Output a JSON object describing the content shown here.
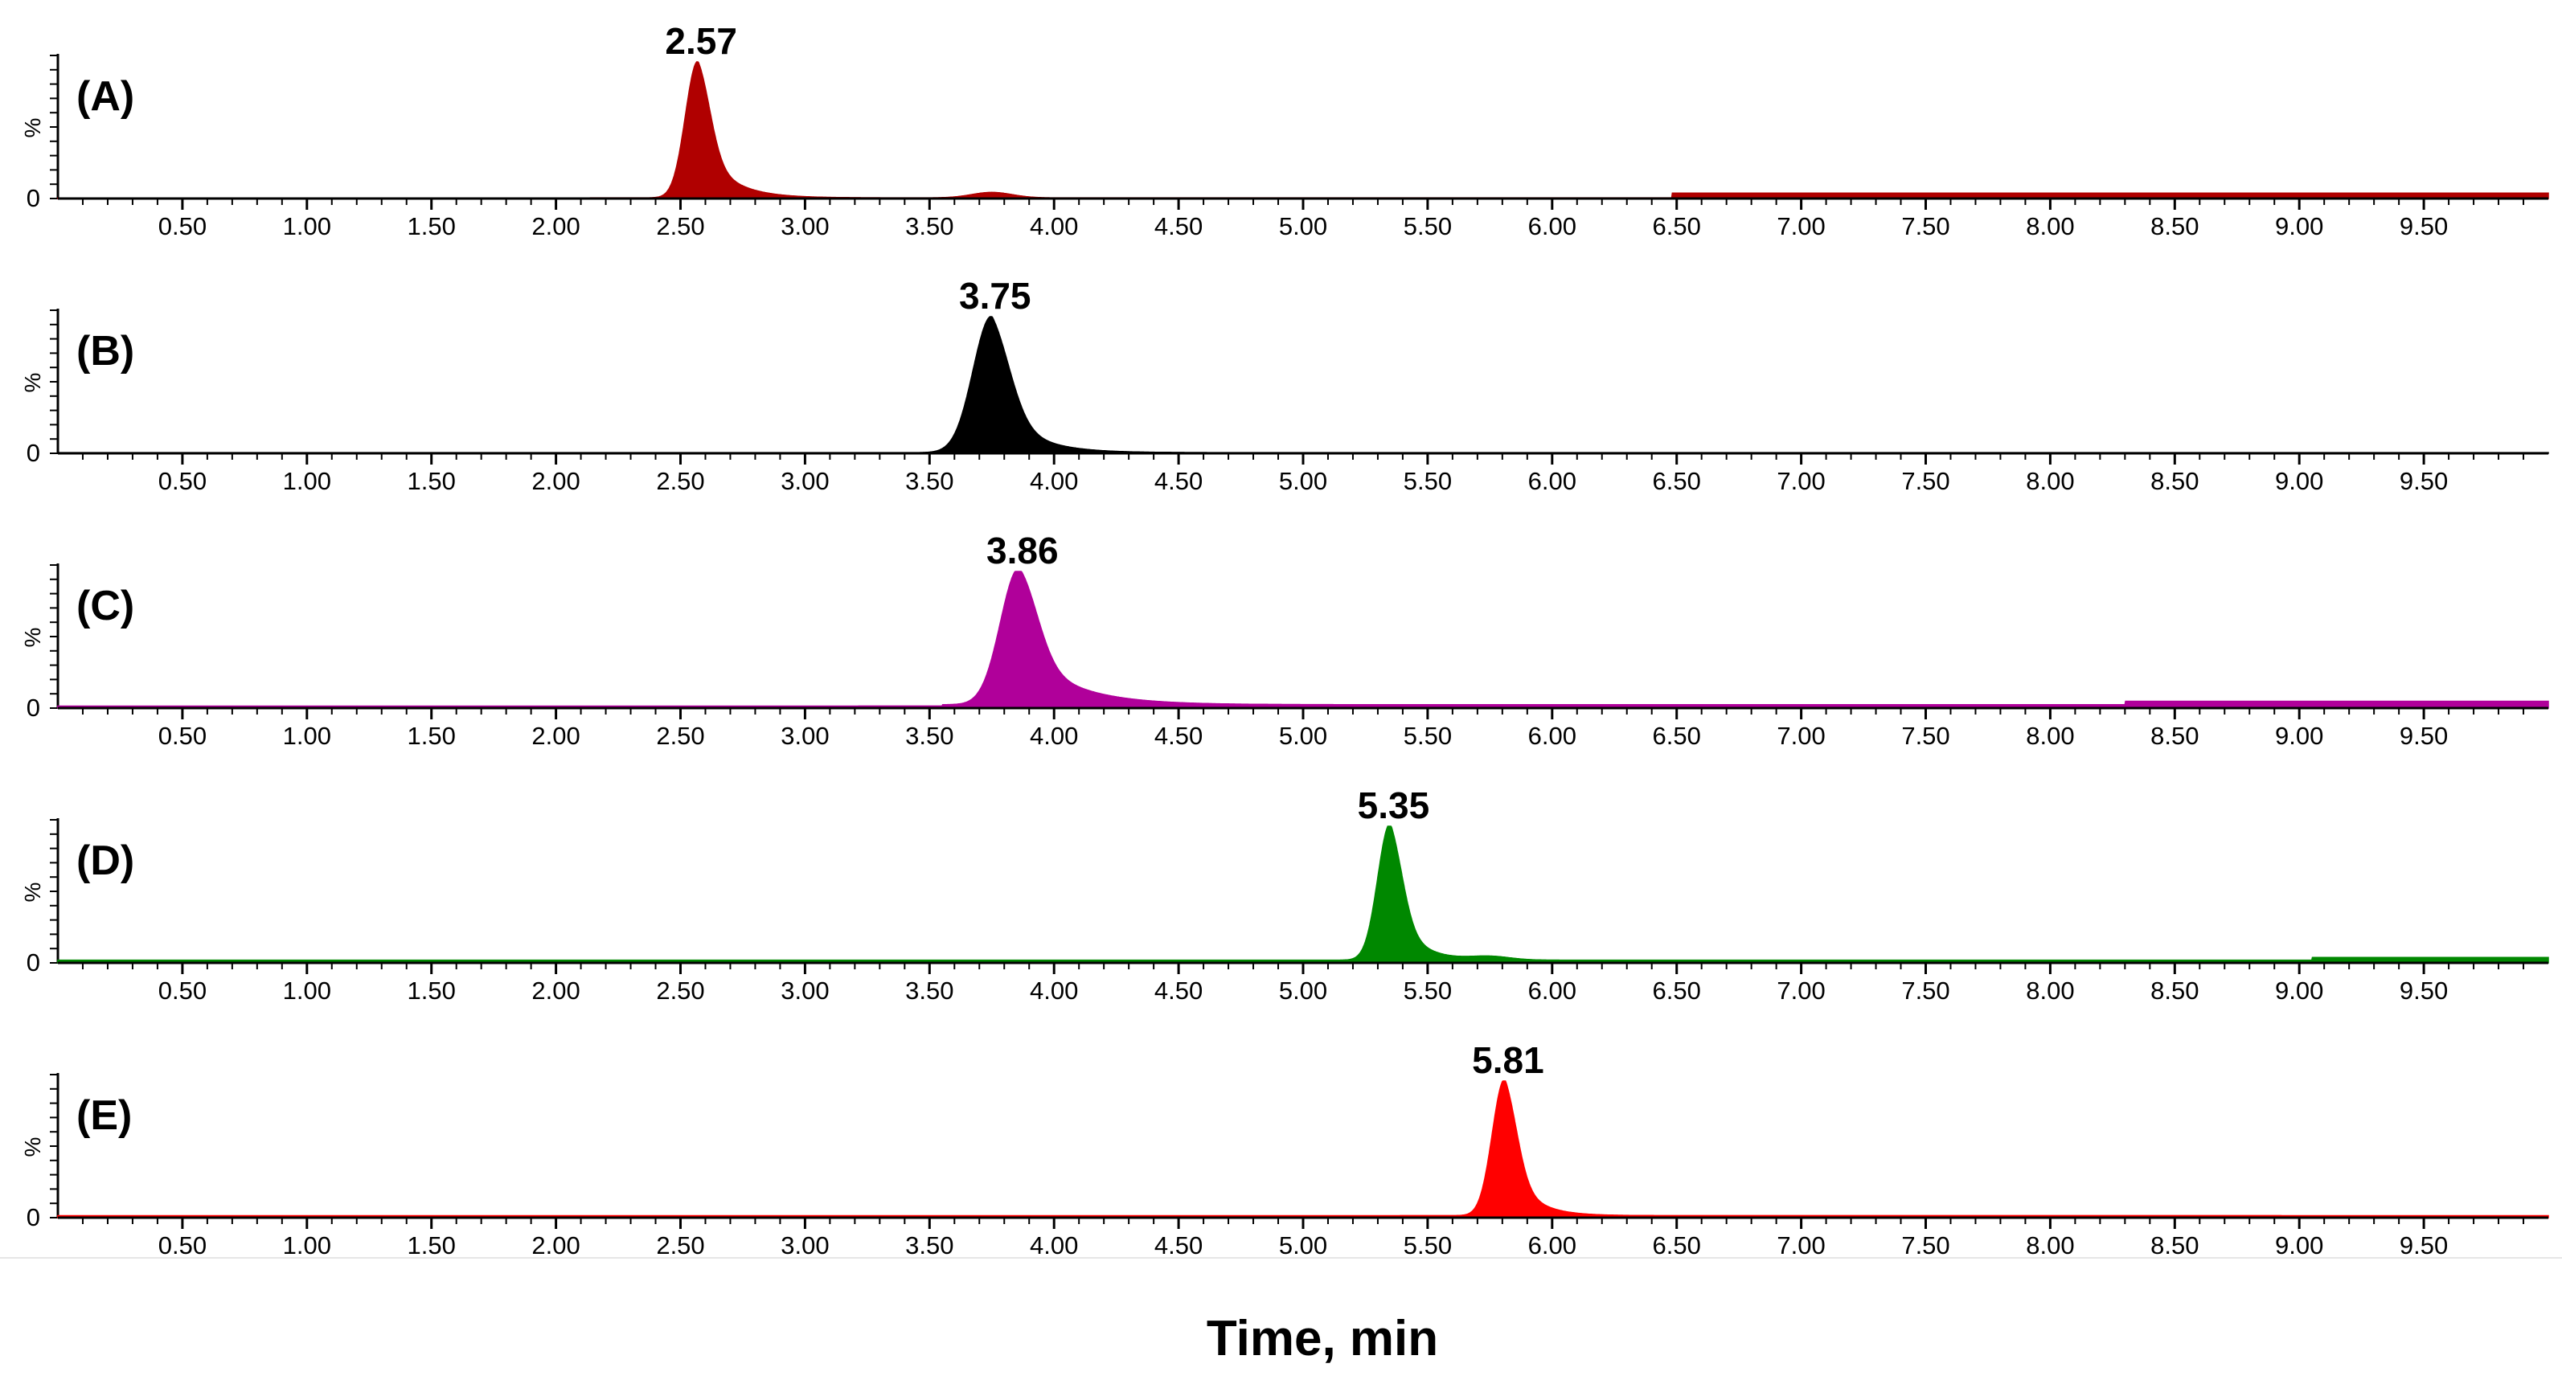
{
  "chart_data": {
    "type": "line",
    "xlabel": "Time, min",
    "xlim": [
      0,
      10.0
    ],
    "x_ticks": [
      "0.50",
      "1.00",
      "1.50",
      "2.00",
      "2.50",
      "3.00",
      "3.50",
      "4.00",
      "4.50",
      "5.00",
      "5.50",
      "6.00",
      "6.50",
      "7.00",
      "7.50",
      "8.00",
      "8.50",
      "9.00",
      "9.50"
    ],
    "y_axis": {
      "label": "%",
      "zero_label": "0",
      "ylim": [
        0,
        100
      ]
    },
    "panels": [
      {
        "label": "(A)",
        "color": "#b00000",
        "peak_time": "2.57",
        "peak": {
          "rt": 2.57,
          "height": 100,
          "sigma_left": 0.05,
          "tail": 0.11
        },
        "minor_peaks": [
          {
            "rt": 3.75,
            "height": 4,
            "width": 0.08
          }
        ],
        "baseline": [
          {
            "from": 0.0,
            "to": 6.48,
            "level": 0.5
          },
          {
            "from": 6.48,
            "to": 10.0,
            "level": 4
          }
        ]
      },
      {
        "label": "(B)",
        "color": "#000000",
        "peak_time": "3.75",
        "peak": {
          "rt": 3.75,
          "height": 100,
          "sigma_left": 0.075,
          "tail": 0.13
        },
        "minor_peaks": [],
        "baseline": [
          {
            "from": 0.0,
            "to": 10.0,
            "level": 0.5
          }
        ]
      },
      {
        "label": "(C)",
        "color": "#b0009a",
        "peak_time": "3.86",
        "peak": {
          "rt": 3.86,
          "height": 100,
          "sigma_left": 0.075,
          "tail": 0.19
        },
        "minor_peaks": [],
        "baseline": [
          {
            "from": 0.0,
            "to": 3.55,
            "level": 1.5
          },
          {
            "from": 3.55,
            "to": 8.3,
            "level": 2.5
          },
          {
            "from": 8.3,
            "to": 10.0,
            "level": 5
          }
        ]
      },
      {
        "label": "(D)",
        "color": "#008800",
        "peak_time": "5.35",
        "peak": {
          "rt": 5.35,
          "height": 100,
          "sigma_left": 0.05,
          "tail": 0.09
        },
        "minor_peaks": [
          {
            "rt": 5.75,
            "height": 2.5,
            "width": 0.08
          }
        ],
        "baseline": [
          {
            "from": 0.0,
            "to": 9.05,
            "level": 2
          },
          {
            "from": 9.05,
            "to": 10.0,
            "level": 4
          }
        ]
      },
      {
        "label": "(E)",
        "color": "#ff0000",
        "peak_time": "5.81",
        "peak": {
          "rt": 5.81,
          "height": 100,
          "sigma_left": 0.05,
          "tail": 0.09
        },
        "minor_peaks": [],
        "baseline": [
          {
            "from": 0.0,
            "to": 10.0,
            "level": 1.5
          }
        ]
      }
    ]
  }
}
